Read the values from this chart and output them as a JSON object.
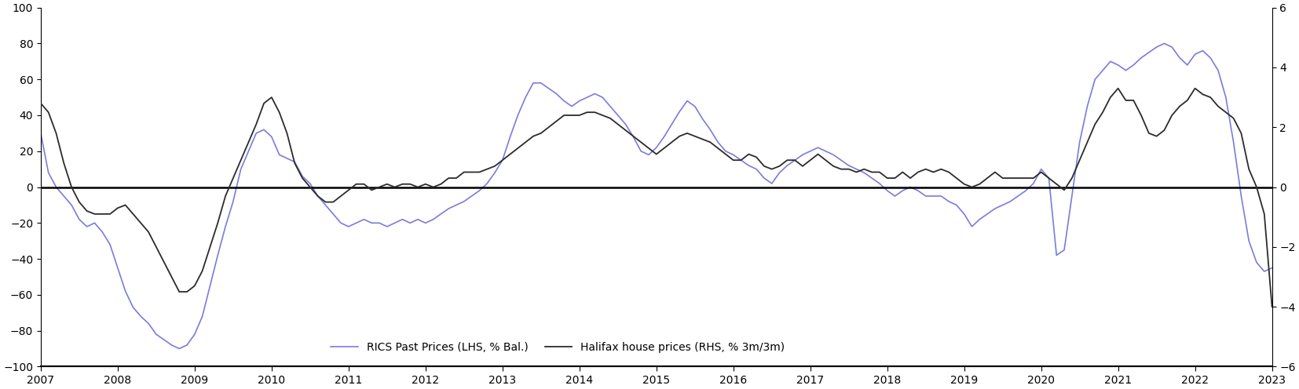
{
  "rics_color": "#7b7bdb",
  "halifax_color": "#2b2b2b",
  "lhs_ylim": [
    -100,
    100
  ],
  "rhs_ylim": [
    -6,
    6
  ],
  "lhs_yticks": [
    -100,
    -80,
    -60,
    -40,
    -20,
    0,
    20,
    40,
    60,
    80,
    100
  ],
  "rhs_yticks": [
    -6,
    -4,
    -2,
    0,
    2,
    4,
    6
  ],
  "legend_labels": [
    "RICS Past Prices (LHS, % Bal.)",
    "Halifax house prices (RHS, % 3m/3m)"
  ],
  "rics_data": [
    [
      2007.0,
      30
    ],
    [
      2007.1,
      8
    ],
    [
      2007.2,
      0
    ],
    [
      2007.3,
      -5
    ],
    [
      2007.4,
      -10
    ],
    [
      2007.5,
      -18
    ],
    [
      2007.6,
      -22
    ],
    [
      2007.7,
      -20
    ],
    [
      2007.8,
      -25
    ],
    [
      2007.9,
      -32
    ],
    [
      2008.0,
      -45
    ],
    [
      2008.1,
      -58
    ],
    [
      2008.2,
      -67
    ],
    [
      2008.3,
      -72
    ],
    [
      2008.4,
      -76
    ],
    [
      2008.5,
      -82
    ],
    [
      2008.6,
      -85
    ],
    [
      2008.7,
      -88
    ],
    [
      2008.8,
      -90
    ],
    [
      2008.9,
      -88
    ],
    [
      2009.0,
      -82
    ],
    [
      2009.1,
      -72
    ],
    [
      2009.2,
      -55
    ],
    [
      2009.3,
      -38
    ],
    [
      2009.4,
      -22
    ],
    [
      2009.5,
      -8
    ],
    [
      2009.6,
      10
    ],
    [
      2009.7,
      20
    ],
    [
      2009.8,
      30
    ],
    [
      2009.9,
      32
    ],
    [
      2010.0,
      28
    ],
    [
      2010.1,
      18
    ],
    [
      2010.2,
      16
    ],
    [
      2010.3,
      14
    ],
    [
      2010.4,
      6
    ],
    [
      2010.5,
      2
    ],
    [
      2010.6,
      -5
    ],
    [
      2010.7,
      -10
    ],
    [
      2010.8,
      -15
    ],
    [
      2010.9,
      -20
    ],
    [
      2011.0,
      -22
    ],
    [
      2011.1,
      -20
    ],
    [
      2011.2,
      -18
    ],
    [
      2011.3,
      -20
    ],
    [
      2011.4,
      -20
    ],
    [
      2011.5,
      -22
    ],
    [
      2011.6,
      -20
    ],
    [
      2011.7,
      -18
    ],
    [
      2011.8,
      -20
    ],
    [
      2011.9,
      -18
    ],
    [
      2012.0,
      -20
    ],
    [
      2012.1,
      -18
    ],
    [
      2012.2,
      -15
    ],
    [
      2012.3,
      -12
    ],
    [
      2012.4,
      -10
    ],
    [
      2012.5,
      -8
    ],
    [
      2012.6,
      -5
    ],
    [
      2012.7,
      -2
    ],
    [
      2012.8,
      2
    ],
    [
      2012.9,
      8
    ],
    [
      2013.0,
      15
    ],
    [
      2013.1,
      28
    ],
    [
      2013.2,
      40
    ],
    [
      2013.3,
      50
    ],
    [
      2013.4,
      58
    ],
    [
      2013.5,
      58
    ],
    [
      2013.6,
      55
    ],
    [
      2013.7,
      52
    ],
    [
      2013.8,
      48
    ],
    [
      2013.9,
      45
    ],
    [
      2014.0,
      48
    ],
    [
      2014.1,
      50
    ],
    [
      2014.2,
      52
    ],
    [
      2014.3,
      50
    ],
    [
      2014.4,
      45
    ],
    [
      2014.5,
      40
    ],
    [
      2014.6,
      35
    ],
    [
      2014.7,
      28
    ],
    [
      2014.8,
      20
    ],
    [
      2014.9,
      18
    ],
    [
      2015.0,
      22
    ],
    [
      2015.1,
      28
    ],
    [
      2015.2,
      35
    ],
    [
      2015.3,
      42
    ],
    [
      2015.4,
      48
    ],
    [
      2015.5,
      45
    ],
    [
      2015.6,
      38
    ],
    [
      2015.7,
      32
    ],
    [
      2015.8,
      25
    ],
    [
      2015.9,
      20
    ],
    [
      2016.0,
      18
    ],
    [
      2016.1,
      15
    ],
    [
      2016.2,
      12
    ],
    [
      2016.3,
      10
    ],
    [
      2016.4,
      5
    ],
    [
      2016.5,
      2
    ],
    [
      2016.6,
      8
    ],
    [
      2016.7,
      12
    ],
    [
      2016.8,
      15
    ],
    [
      2016.9,
      18
    ],
    [
      2017.0,
      20
    ],
    [
      2017.1,
      22
    ],
    [
      2017.2,
      20
    ],
    [
      2017.3,
      18
    ],
    [
      2017.4,
      15
    ],
    [
      2017.5,
      12
    ],
    [
      2017.6,
      10
    ],
    [
      2017.7,
      8
    ],
    [
      2017.8,
      5
    ],
    [
      2017.9,
      2
    ],
    [
      2018.0,
      -2
    ],
    [
      2018.1,
      -5
    ],
    [
      2018.2,
      -2
    ],
    [
      2018.3,
      0
    ],
    [
      2018.4,
      -2
    ],
    [
      2018.5,
      -5
    ],
    [
      2018.6,
      -5
    ],
    [
      2018.7,
      -5
    ],
    [
      2018.8,
      -8
    ],
    [
      2018.9,
      -10
    ],
    [
      2019.0,
      -15
    ],
    [
      2019.1,
      -22
    ],
    [
      2019.2,
      -18
    ],
    [
      2019.3,
      -15
    ],
    [
      2019.4,
      -12
    ],
    [
      2019.5,
      -10
    ],
    [
      2019.6,
      -8
    ],
    [
      2019.7,
      -5
    ],
    [
      2019.8,
      -2
    ],
    [
      2019.9,
      2
    ],
    [
      2020.0,
      10
    ],
    [
      2020.1,
      5
    ],
    [
      2020.2,
      -38
    ],
    [
      2020.3,
      -35
    ],
    [
      2020.4,
      -5
    ],
    [
      2020.5,
      25
    ],
    [
      2020.6,
      45
    ],
    [
      2020.7,
      60
    ],
    [
      2020.8,
      65
    ],
    [
      2020.9,
      70
    ],
    [
      2021.0,
      68
    ],
    [
      2021.1,
      65
    ],
    [
      2021.2,
      68
    ],
    [
      2021.3,
      72
    ],
    [
      2021.4,
      75
    ],
    [
      2021.5,
      78
    ],
    [
      2021.6,
      80
    ],
    [
      2021.7,
      78
    ],
    [
      2021.8,
      72
    ],
    [
      2021.9,
      68
    ],
    [
      2022.0,
      74
    ],
    [
      2022.1,
      76
    ],
    [
      2022.2,
      72
    ],
    [
      2022.3,
      65
    ],
    [
      2022.4,
      50
    ],
    [
      2022.5,
      25
    ],
    [
      2022.6,
      -5
    ],
    [
      2022.7,
      -30
    ],
    [
      2022.8,
      -42
    ],
    [
      2022.9,
      -47
    ],
    [
      2023.0,
      -45
    ]
  ],
  "halifax_data_rhs": [
    [
      2007.0,
      2.8
    ],
    [
      2007.1,
      2.5
    ],
    [
      2007.2,
      1.8
    ],
    [
      2007.3,
      0.8
    ],
    [
      2007.4,
      0.0
    ],
    [
      2007.5,
      -0.5
    ],
    [
      2007.6,
      -0.8
    ],
    [
      2007.7,
      -0.9
    ],
    [
      2007.8,
      -0.9
    ],
    [
      2007.9,
      -0.9
    ],
    [
      2008.0,
      -0.7
    ],
    [
      2008.1,
      -0.6
    ],
    [
      2008.2,
      -0.9
    ],
    [
      2008.3,
      -1.2
    ],
    [
      2008.4,
      -1.5
    ],
    [
      2008.5,
      -2.0
    ],
    [
      2008.6,
      -2.5
    ],
    [
      2008.7,
      -3.0
    ],
    [
      2008.8,
      -3.5
    ],
    [
      2008.9,
      -3.5
    ],
    [
      2009.0,
      -3.3
    ],
    [
      2009.1,
      -2.8
    ],
    [
      2009.2,
      -2.0
    ],
    [
      2009.3,
      -1.2
    ],
    [
      2009.4,
      -0.3
    ],
    [
      2009.5,
      0.3
    ],
    [
      2009.6,
      0.9
    ],
    [
      2009.7,
      1.5
    ],
    [
      2009.8,
      2.1
    ],
    [
      2009.9,
      2.8
    ],
    [
      2010.0,
      3.0
    ],
    [
      2010.1,
      2.5
    ],
    [
      2010.2,
      1.8
    ],
    [
      2010.3,
      0.8
    ],
    [
      2010.4,
      0.3
    ],
    [
      2010.5,
      0.0
    ],
    [
      2010.6,
      -0.3
    ],
    [
      2010.7,
      -0.5
    ],
    [
      2010.8,
      -0.5
    ],
    [
      2010.9,
      -0.3
    ],
    [
      2011.0,
      -0.1
    ],
    [
      2011.1,
      0.1
    ],
    [
      2011.2,
      0.1
    ],
    [
      2011.3,
      -0.1
    ],
    [
      2011.4,
      0.0
    ],
    [
      2011.5,
      0.1
    ],
    [
      2011.6,
      0.0
    ],
    [
      2011.7,
      0.1
    ],
    [
      2011.8,
      0.1
    ],
    [
      2011.9,
      0.0
    ],
    [
      2012.0,
      0.1
    ],
    [
      2012.1,
      0.0
    ],
    [
      2012.2,
      0.1
    ],
    [
      2012.3,
      0.3
    ],
    [
      2012.4,
      0.3
    ],
    [
      2012.5,
      0.5
    ],
    [
      2012.6,
      0.5
    ],
    [
      2012.7,
      0.5
    ],
    [
      2012.8,
      0.6
    ],
    [
      2012.9,
      0.7
    ],
    [
      2013.0,
      0.9
    ],
    [
      2013.1,
      1.1
    ],
    [
      2013.2,
      1.3
    ],
    [
      2013.3,
      1.5
    ],
    [
      2013.4,
      1.7
    ],
    [
      2013.5,
      1.8
    ],
    [
      2013.6,
      2.0
    ],
    [
      2013.7,
      2.2
    ],
    [
      2013.8,
      2.4
    ],
    [
      2013.9,
      2.4
    ],
    [
      2014.0,
      2.4
    ],
    [
      2014.1,
      2.5
    ],
    [
      2014.2,
      2.5
    ],
    [
      2014.3,
      2.4
    ],
    [
      2014.4,
      2.3
    ],
    [
      2014.5,
      2.1
    ],
    [
      2014.6,
      1.9
    ],
    [
      2014.7,
      1.7
    ],
    [
      2014.8,
      1.5
    ],
    [
      2014.9,
      1.3
    ],
    [
      2015.0,
      1.1
    ],
    [
      2015.1,
      1.3
    ],
    [
      2015.2,
      1.5
    ],
    [
      2015.3,
      1.7
    ],
    [
      2015.4,
      1.8
    ],
    [
      2015.5,
      1.7
    ],
    [
      2015.6,
      1.6
    ],
    [
      2015.7,
      1.5
    ],
    [
      2015.8,
      1.3
    ],
    [
      2015.9,
      1.1
    ],
    [
      2016.0,
      0.9
    ],
    [
      2016.1,
      0.9
    ],
    [
      2016.2,
      1.1
    ],
    [
      2016.3,
      1.0
    ],
    [
      2016.4,
      0.7
    ],
    [
      2016.5,
      0.6
    ],
    [
      2016.6,
      0.7
    ],
    [
      2016.7,
      0.9
    ],
    [
      2016.8,
      0.9
    ],
    [
      2016.9,
      0.7
    ],
    [
      2017.0,
      0.9
    ],
    [
      2017.1,
      1.1
    ],
    [
      2017.2,
      0.9
    ],
    [
      2017.3,
      0.7
    ],
    [
      2017.4,
      0.6
    ],
    [
      2017.5,
      0.6
    ],
    [
      2017.6,
      0.5
    ],
    [
      2017.7,
      0.6
    ],
    [
      2017.8,
      0.5
    ],
    [
      2017.9,
      0.5
    ],
    [
      2018.0,
      0.3
    ],
    [
      2018.1,
      0.3
    ],
    [
      2018.2,
      0.5
    ],
    [
      2018.3,
      0.3
    ],
    [
      2018.4,
      0.5
    ],
    [
      2018.5,
      0.6
    ],
    [
      2018.6,
      0.5
    ],
    [
      2018.7,
      0.6
    ],
    [
      2018.8,
      0.5
    ],
    [
      2018.9,
      0.3
    ],
    [
      2019.0,
      0.1
    ],
    [
      2019.1,
      0.0
    ],
    [
      2019.2,
      0.1
    ],
    [
      2019.3,
      0.3
    ],
    [
      2019.4,
      0.5
    ],
    [
      2019.5,
      0.3
    ],
    [
      2019.6,
      0.3
    ],
    [
      2019.7,
      0.3
    ],
    [
      2019.8,
      0.3
    ],
    [
      2019.9,
      0.3
    ],
    [
      2020.0,
      0.5
    ],
    [
      2020.1,
      0.3
    ],
    [
      2020.2,
      0.1
    ],
    [
      2020.3,
      -0.1
    ],
    [
      2020.4,
      0.3
    ],
    [
      2020.5,
      0.9
    ],
    [
      2020.6,
      1.5
    ],
    [
      2020.7,
      2.1
    ],
    [
      2020.8,
      2.5
    ],
    [
      2020.9,
      3.0
    ],
    [
      2021.0,
      3.3
    ],
    [
      2021.1,
      2.9
    ],
    [
      2021.2,
      2.9
    ],
    [
      2021.3,
      2.4
    ],
    [
      2021.4,
      1.8
    ],
    [
      2021.5,
      1.7
    ],
    [
      2021.6,
      1.9
    ],
    [
      2021.7,
      2.4
    ],
    [
      2021.8,
      2.7
    ],
    [
      2021.9,
      2.9
    ],
    [
      2022.0,
      3.3
    ],
    [
      2022.1,
      3.1
    ],
    [
      2022.2,
      3.0
    ],
    [
      2022.3,
      2.7
    ],
    [
      2022.4,
      2.5
    ],
    [
      2022.5,
      2.3
    ],
    [
      2022.6,
      1.8
    ],
    [
      2022.7,
      0.6
    ],
    [
      2022.8,
      0.0
    ],
    [
      2022.9,
      -0.9
    ],
    [
      2023.0,
      -4.0
    ]
  ]
}
